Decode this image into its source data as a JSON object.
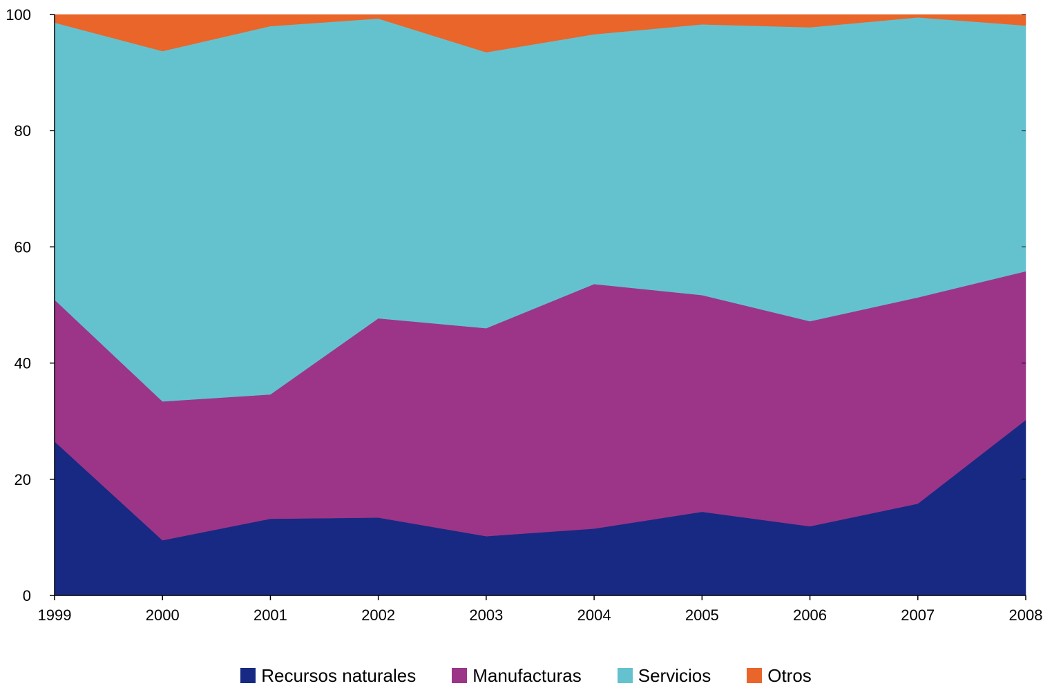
{
  "chart_data": {
    "type": "area",
    "stacked": true,
    "title": "",
    "xlabel": "",
    "ylabel": "",
    "categories": [
      "1999",
      "2000",
      "2001",
      "2002",
      "2003",
      "2004",
      "2005",
      "2006",
      "2007",
      "2008"
    ],
    "ylim": [
      0,
      100
    ],
    "yticks": [
      "0",
      "20",
      "40",
      "60",
      "80",
      "100"
    ],
    "grid": false,
    "legend_position": "bottom",
    "series": [
      {
        "name": "Recursos naturales",
        "color": "#172983",
        "values": [
          26.5,
          9.5,
          13.2,
          13.4,
          10.2,
          11.5,
          14.4,
          11.9,
          15.8,
          30.2
        ]
      },
      {
        "name": "Manufacturas",
        "color": "#9C3587",
        "values": [
          24.4,
          23.9,
          21.4,
          34.3,
          35.8,
          42.1,
          37.3,
          35.3,
          35.5,
          25.6
        ]
      },
      {
        "name": "Servicios",
        "color": "#64C2CF",
        "values": [
          47.7,
          60.3,
          63.4,
          51.6,
          47.5,
          43.0,
          46.6,
          50.6,
          48.2,
          42.3
        ]
      },
      {
        "name": "Otros",
        "color": "#E9652A",
        "values": [
          1.4,
          6.3,
          2.0,
          0.7,
          6.5,
          3.4,
          1.7,
          2.2,
          0.5,
          1.9
        ]
      }
    ]
  }
}
